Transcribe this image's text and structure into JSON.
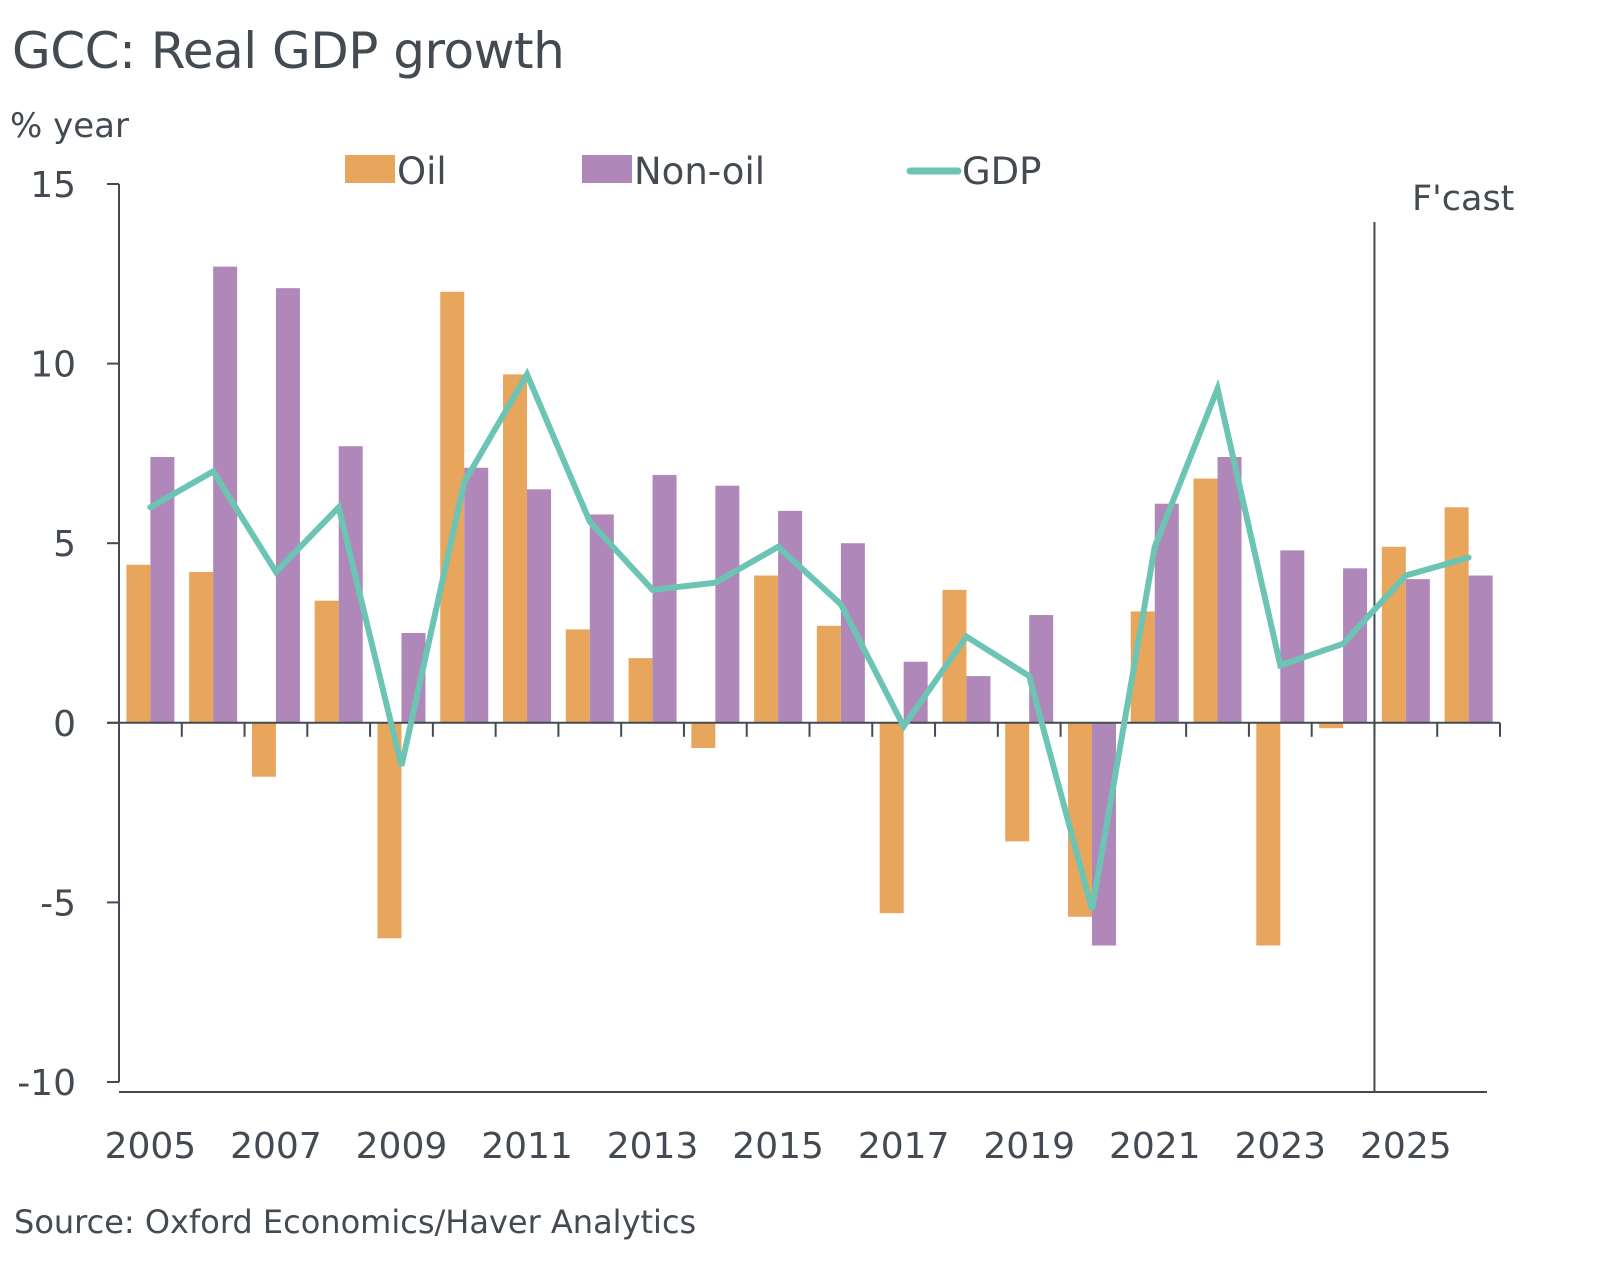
{
  "chart_data": {
    "type": "bar",
    "title": "GCC: Real GDP growth",
    "ylabel": "% year",
    "xlabel": "",
    "source": "Source: Oxford Economics/Haver Analytics",
    "ylim": [
      -10,
      15
    ],
    "yticks": [
      15,
      10,
      5,
      0,
      -5,
      -10
    ],
    "ytick_labels": [
      "15",
      "10",
      "5",
      "0",
      "-5",
      "-10"
    ],
    "categories": [
      "2005",
      "2006",
      "2007",
      "2008",
      "2009",
      "2010",
      "2011",
      "2012",
      "2013",
      "2014",
      "2015",
      "2016",
      "2017",
      "2018",
      "2019",
      "2020",
      "2021",
      "2022",
      "2023",
      "2024",
      "2025",
      "2026"
    ],
    "xtick_labels": [
      "2005",
      "2007",
      "2009",
      "2011",
      "2013",
      "2015",
      "2017",
      "2019",
      "2021",
      "2023",
      "2025"
    ],
    "grid": false,
    "legend_position": "top",
    "forecast_label": "F'cast",
    "forecast_start": "2025",
    "series": [
      {
        "name": "Oil",
        "type": "bar",
        "color": "#e8a65c",
        "values": [
          4.4,
          4.2,
          -1.5,
          3.4,
          -6.0,
          12.0,
          9.7,
          2.6,
          1.8,
          -0.7,
          4.1,
          2.7,
          -5.3,
          3.7,
          -3.3,
          -5.4,
          3.1,
          6.8,
          -6.2,
          -0.15,
          4.9,
          6.0
        ]
      },
      {
        "name": "Non-oil",
        "type": "bar",
        "color": "#b087b9",
        "values": [
          7.4,
          12.7,
          12.1,
          7.7,
          2.5,
          7.1,
          6.5,
          5.8,
          6.9,
          6.6,
          5.9,
          5.0,
          1.7,
          1.3,
          3.0,
          -6.2,
          6.1,
          7.4,
          4.8,
          4.3,
          4.0,
          4.1
        ]
      },
      {
        "name": "GDP",
        "type": "line",
        "color": "#6cc5b4",
        "values": [
          6.0,
          7.0,
          4.2,
          6.0,
          -1.2,
          6.7,
          9.7,
          5.6,
          3.7,
          3.9,
          4.9,
          3.3,
          -0.1,
          2.4,
          1.3,
          -5.2,
          4.9,
          9.3,
          1.6,
          2.2,
          4.1,
          4.6
        ]
      }
    ],
    "axis_color": "#444a52"
  }
}
